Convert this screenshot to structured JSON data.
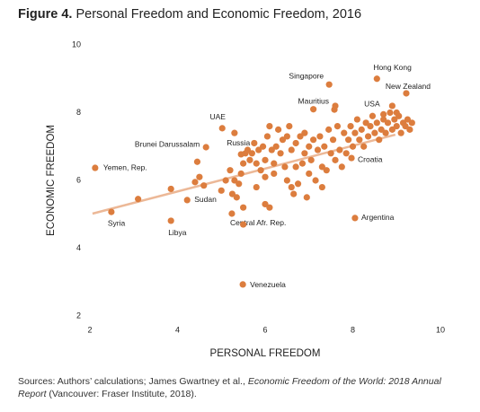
{
  "chart_data": {
    "type": "scatter",
    "figure_label": "Figure 4.",
    "title": "Personal Freedom and Economic Freedom, 2016",
    "x_label": "PERSONAL FREEDOM",
    "y_label": "ECONOMIC FREEDOM",
    "source": [
      "Sources: Authors’ calculations; James Gwartney et al., ",
      "Economic Freedom of the World: 2018 Annual Report",
      " (Vancouver: Fraser Institute, 2018)."
    ],
    "xlim": [
      2,
      10
    ],
    "ylim": [
      2,
      10
    ],
    "xticks": [
      2,
      4,
      6,
      8,
      10
    ],
    "yticks": [
      2,
      4,
      6,
      8,
      10
    ],
    "color": "#dc7d3e",
    "trendline": {
      "color": "#ecb897",
      "x": [
        2.06,
        8.97
      ],
      "y": [
        5.02,
        7.35
      ]
    },
    "x": [
      8.55,
      9.22,
      7.46,
      7.58,
      8.7,
      5.02,
      4.65,
      5.45,
      7.97,
      2.12,
      4.22,
      2.49,
      3.85,
      5.24,
      8.05,
      5.49,
      3.1,
      3.85,
      4.4,
      4.45,
      4.5,
      4.6,
      5.0,
      5.1,
      5.2,
      5.25,
      5.3,
      5.35,
      5.4,
      5.45,
      5.5,
      5.55,
      5.5,
      5.5,
      5.3,
      5.6,
      5.65,
      5.7,
      5.75,
      5.8,
      5.85,
      5.9,
      5.95,
      6.0,
      6.0,
      6.05,
      6.1,
      6.1,
      6.15,
      6.2,
      6.2,
      6.25,
      6.3,
      6.35,
      6.4,
      6.45,
      6.5,
      6.5,
      6.55,
      6.6,
      6.6,
      6.65,
      6.7,
      6.7,
      6.75,
      6.8,
      6.85,
      6.9,
      6.95,
      7.0,
      7.0,
      7.05,
      7.1,
      7.15,
      7.2,
      7.25,
      7.3,
      7.35,
      7.4,
      7.45,
      7.5,
      7.55,
      7.6,
      7.65,
      7.7,
      7.75,
      7.8,
      7.85,
      7.9,
      7.95,
      8.0,
      8.05,
      8.1,
      8.15,
      8.2,
      8.25,
      8.3,
      8.35,
      8.4,
      8.45,
      8.5,
      8.55,
      8.6,
      8.65,
      8.7,
      8.75,
      8.8,
      8.85,
      8.9,
      8.95,
      9.0,
      9.05,
      9.1,
      9.15,
      9.2,
      9.25,
      9.3,
      9.35,
      8.9,
      9.0,
      7.1,
      7.6,
      6.9,
      6.0,
      5.8,
      7.3
    ],
    "y": [
      9.0,
      8.57,
      8.83,
      8.09,
      7.95,
      7.54,
      6.98,
      6.77,
      6.66,
      6.37,
      5.42,
      5.07,
      4.81,
      5.02,
      4.89,
      2.93,
      5.45,
      5.75,
      5.95,
      6.55,
      6.1,
      5.85,
      5.7,
      6.0,
      6.3,
      5.6,
      6.0,
      5.5,
      5.9,
      6.2,
      6.5,
      6.8,
      4.7,
      5.2,
      7.4,
      6.9,
      6.6,
      6.8,
      7.1,
      6.5,
      6.9,
      6.3,
      7.0,
      6.6,
      6.1,
      7.3,
      7.6,
      5.2,
      6.9,
      6.5,
      6.2,
      7.0,
      7.5,
      6.8,
      7.2,
      6.4,
      7.3,
      6.0,
      7.6,
      5.8,
      6.9,
      5.6,
      7.1,
      6.4,
      5.9,
      7.3,
      6.5,
      6.8,
      5.5,
      7.0,
      6.2,
      6.6,
      7.2,
      6.0,
      6.9,
      7.3,
      6.4,
      7.0,
      6.3,
      7.5,
      6.8,
      7.2,
      6.6,
      7.6,
      6.9,
      6.4,
      7.4,
      6.8,
      7.2,
      7.6,
      7.0,
      7.4,
      7.8,
      7.2,
      7.5,
      7.0,
      7.7,
      7.3,
      7.6,
      7.9,
      7.4,
      7.7,
      7.2,
      7.5,
      7.8,
      7.4,
      7.7,
      8.0,
      7.5,
      7.8,
      7.6,
      7.9,
      7.4,
      7.7,
      7.6,
      7.8,
      7.5,
      7.7,
      8.2,
      8.0,
      8.1,
      8.2,
      7.4,
      5.3,
      5.8,
      5.8
    ],
    "labels": [
      "Hong Kong",
      "New Zealand",
      "Singapore",
      "Mauritius",
      "USA",
      "UAE",
      "Brunei Darussalam",
      "Russia",
      "Croatia",
      "Yemen, Rep.",
      "Sudan",
      "Syria",
      "Libya",
      "Central Afr. Rep.",
      "Argentina",
      "Venezuela",
      null,
      null,
      null,
      null,
      null,
      null,
      null,
      null,
      null,
      null,
      null,
      null,
      null,
      null,
      null,
      null,
      null,
      null,
      null,
      null,
      null,
      null,
      null,
      null,
      null,
      null,
      null,
      null,
      null,
      null,
      null,
      null,
      null,
      null,
      null,
      null,
      null,
      null,
      null,
      null,
      null,
      null,
      null,
      null,
      null,
      null,
      null,
      null,
      null,
      null,
      null,
      null,
      null,
      null,
      null,
      null,
      null,
      null,
      null,
      null,
      null,
      null,
      null,
      null,
      null,
      null,
      null,
      null,
      null,
      null,
      null,
      null,
      null,
      null,
      null,
      null,
      null,
      null,
      null,
      null,
      null,
      null,
      null,
      null,
      null,
      null,
      null,
      null,
      null,
      null,
      null,
      null,
      null,
      null,
      null,
      null,
      null,
      null,
      null,
      null,
      null,
      null,
      null,
      null,
      null,
      null,
      null,
      null
    ]
  }
}
